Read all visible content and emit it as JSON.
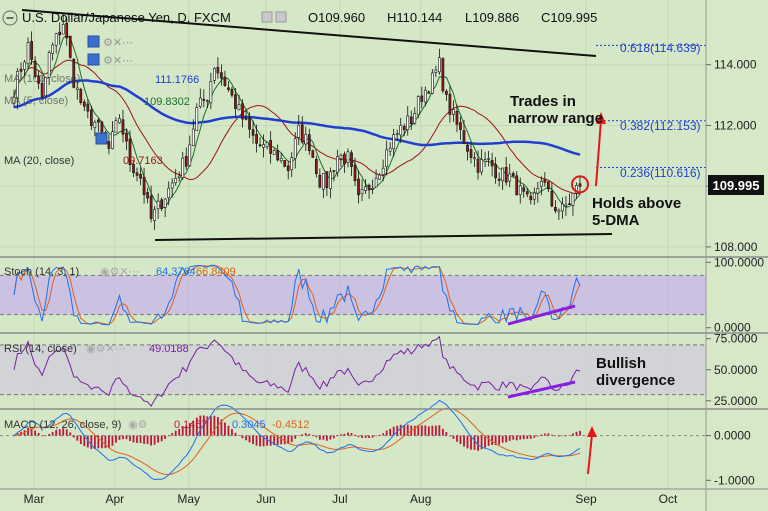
{
  "header": {
    "title": "U.S. Dollar/Japanese Yen, D, FXCM",
    "ohlc": [
      "O109.960",
      "H110.144",
      "L109.886",
      "C109.995"
    ]
  },
  "colors": {
    "background": "#d6e8c8",
    "candle_up": "#ffffff",
    "candle_down": "#8a1a1a",
    "wick": "#111111",
    "ma100": "#1f3fd0",
    "ma20": "#a01414",
    "ma5": "#1f6e2a",
    "stoch_k": "#1f6ff0",
    "stoch_d": "#e0611e",
    "stoch_band": "#c8b8e6",
    "rsi_line": "#7a1fa3",
    "rsi_band": "#d0d0d8",
    "macd_line": "#1f6ff0",
    "macd_signal": "#e0611e",
    "macd_hist": "#c0143c",
    "annotation": "#8b1fe0",
    "arrow": "#e01818"
  },
  "icons": [
    "eye-icon",
    "settings-icon",
    "close-icon",
    "more-icon"
  ],
  "price_panel": {
    "indicator_labels": [
      "MA (100, close)",
      "MA (5, close)",
      "MA (20, close)"
    ],
    "ma_values": [
      "111.1766",
      "109.8302",
      "09.7163"
    ],
    "fib_levels": [
      {
        "label": "0.618(114.639)",
        "value": 114.639
      },
      {
        "label": "0.382(112.153)",
        "value": 112.153
      },
      {
        "label": "0.236(110.616)",
        "value": 110.616
      }
    ],
    "annotation_1": "Trades in",
    "annotation_2": "narrow range",
    "annotation_3": "Holds above",
    "annotation_4": "5-DMA",
    "last_price": "109.995"
  },
  "stoch_panel": {
    "label": "Stoch (14, 3, 1)",
    "value_k": "64.3764",
    "value_d": "66.8409"
  },
  "rsi_panel": {
    "label": "RSI (14, close)",
    "value": "49.0188",
    "annotation_1": "Bullish",
    "annotation_2": "divergence"
  },
  "macd_panel": {
    "label": "MACD (12, 26, close, 9)",
    "value_hist": "0.1467",
    "value_macd": "0.3045",
    "value_signal": "-0.4512"
  },
  "chart_data": {
    "type": "candlestick",
    "title": "U.S. Dollar/Japanese Yen, D, FXCM",
    "x_labels": [
      "Mar",
      "Apr",
      "May",
      "Jun",
      "Jul",
      "Aug",
      "Sep",
      "Oct"
    ],
    "price": {
      "ylim": [
        107.7,
        116.0
      ],
      "ticks": [
        "114.000",
        "112.000",
        "110.000",
        "108.000"
      ],
      "tick_values": [
        114,
        112,
        110,
        108
      ],
      "trendline_upper": [
        {
          "x": "late Feb",
          "y": 116.2
        },
        {
          "x": "late Sep",
          "y": 114.2
        }
      ],
      "trendline_lower": [
        {
          "x": "mid Apr",
          "y": 108.1
        },
        {
          "x": "early Oct",
          "y": 108.3
        }
      ],
      "close_anchors": [
        [
          0,
          113.2
        ],
        [
          4,
          114.6
        ],
        [
          8,
          112.8
        ],
        [
          10,
          114.3
        ],
        [
          14,
          115.4
        ],
        [
          17,
          113.5
        ],
        [
          20,
          112.4
        ],
        [
          23,
          112.1
        ],
        [
          27,
          111.2
        ],
        [
          30,
          112.3
        ],
        [
          33,
          110.8
        ],
        [
          36,
          110.3
        ],
        [
          39,
          108.9
        ],
        [
          42,
          109.5
        ],
        [
          45,
          110.1
        ],
        [
          49,
          110.9
        ],
        [
          52,
          112.5
        ],
        [
          55,
          113.0
        ],
        [
          57,
          114.0
        ],
        [
          60,
          113.4
        ],
        [
          63,
          112.7
        ],
        [
          66,
          112.0
        ],
        [
          69,
          111.4
        ],
        [
          72,
          111.2
        ],
        [
          75,
          111.0
        ],
        [
          78,
          110.6
        ],
        [
          81,
          111.8
        ],
        [
          84,
          111.4
        ],
        [
          87,
          110.2
        ],
        [
          89,
          110.1
        ],
        [
          92,
          111.0
        ],
        [
          95,
          110.9
        ],
        [
          98,
          109.5
        ],
        [
          101,
          110.0
        ],
        [
          104,
          110.6
        ],
        [
          107,
          111.4
        ],
        [
          110,
          111.9
        ],
        [
          113,
          112.2
        ],
        [
          116,
          113.0
        ],
        [
          119,
          113.5
        ],
        [
          121,
          114.0
        ],
        [
          123,
          112.8
        ],
        [
          126,
          112.0
        ],
        [
          129,
          111.3
        ],
        [
          132,
          110.7
        ],
        [
          135,
          110.8
        ],
        [
          138,
          110.4
        ],
        [
          141,
          110.3
        ],
        [
          144,
          109.8
        ],
        [
          147,
          109.3
        ],
        [
          150,
          110.3
        ],
        [
          153,
          109.4
        ],
        [
          156,
          109.2
        ],
        [
          158,
          109.5
        ],
        [
          160,
          109.9
        ],
        [
          161,
          110.0
        ]
      ],
      "ma100_last": 111.1766,
      "ma5_last": 109.8302,
      "ma20_last": 109.7163,
      "last_close": 109.995
    },
    "stoch": {
      "ylim": [
        -5,
        105
      ],
      "ticks": [
        "100.0000",
        "0.0000"
      ],
      "tick_values": [
        100,
        0
      ],
      "band": [
        20,
        80
      ],
      "k_last": 64.3764,
      "d_last": 66.8409
    },
    "rsi": {
      "ylim": [
        20,
        78
      ],
      "ticks": [
        "75.0000",
        "50.0000",
        "25.0000"
      ],
      "tick_values": [
        75,
        50,
        25
      ],
      "band": [
        30,
        70
      ],
      "last": 49.0188
    },
    "macd": {
      "ylim": [
        -1.15,
        0.55
      ],
      "ticks": [
        "0.0000",
        "-1.0000"
      ],
      "tick_values": [
        0,
        -1
      ],
      "hist_last": 0.1467,
      "macd_last": 0.3045,
      "signal_last": -0.4512
    }
  }
}
